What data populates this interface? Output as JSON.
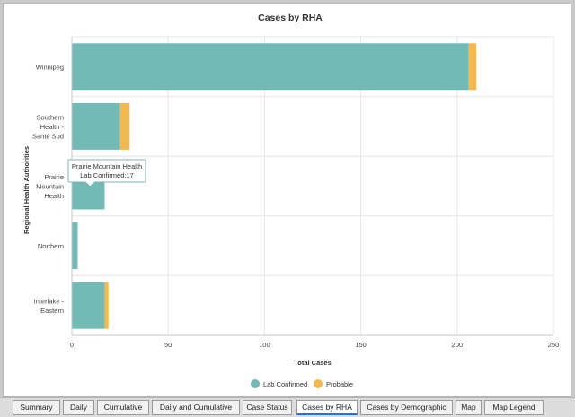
{
  "colors": {
    "lab_confirmed": "#73bab6",
    "probable": "#f3b94f",
    "grid": "#e6e6e6",
    "axis": "#c8c8c8",
    "tab_active_underline": "#2a6fd6"
  },
  "chart_data": {
    "type": "bar",
    "orientation": "horizontal",
    "stacked": true,
    "title": "Cases by RHA",
    "xlabel": "Total Cases",
    "ylabel": "Regional Health Authorities",
    "xlim": [
      0,
      250
    ],
    "xticks": [
      0,
      50,
      100,
      150,
      200,
      250
    ],
    "grid": true,
    "legend_position": "bottom-center",
    "categories": [
      [
        "Winnipeg"
      ],
      [
        "Southern",
        "Health -",
        "Santé Sud"
      ],
      [
        "Prairie",
        "Mountain",
        "Health"
      ],
      [
        "Northern"
      ],
      [
        "Interlake -",
        "Eastern"
      ]
    ],
    "series": [
      {
        "name": "Lab Confirmed",
        "values": [
          206,
          25,
          17,
          3,
          17
        ]
      },
      {
        "name": "Probable",
        "values": [
          4,
          5,
          0,
          0,
          2
        ]
      }
    ],
    "tooltip": {
      "category_index": 2,
      "title": "Prairie Mountain Health",
      "text": "Lab Confirmed:17"
    }
  },
  "tabs": [
    {
      "label": "Summary",
      "active": false
    },
    {
      "label": "Daily",
      "active": false
    },
    {
      "label": "Cumulative",
      "active": false
    },
    {
      "label": "Daily and Cumulative",
      "active": false
    },
    {
      "label": "Case Status",
      "active": false
    },
    {
      "label": "Cases by RHA",
      "active": true
    },
    {
      "label": "Cases by Demographic",
      "active": false
    },
    {
      "label": "Map",
      "active": false
    },
    {
      "label": "Map Legend",
      "active": false
    }
  ]
}
